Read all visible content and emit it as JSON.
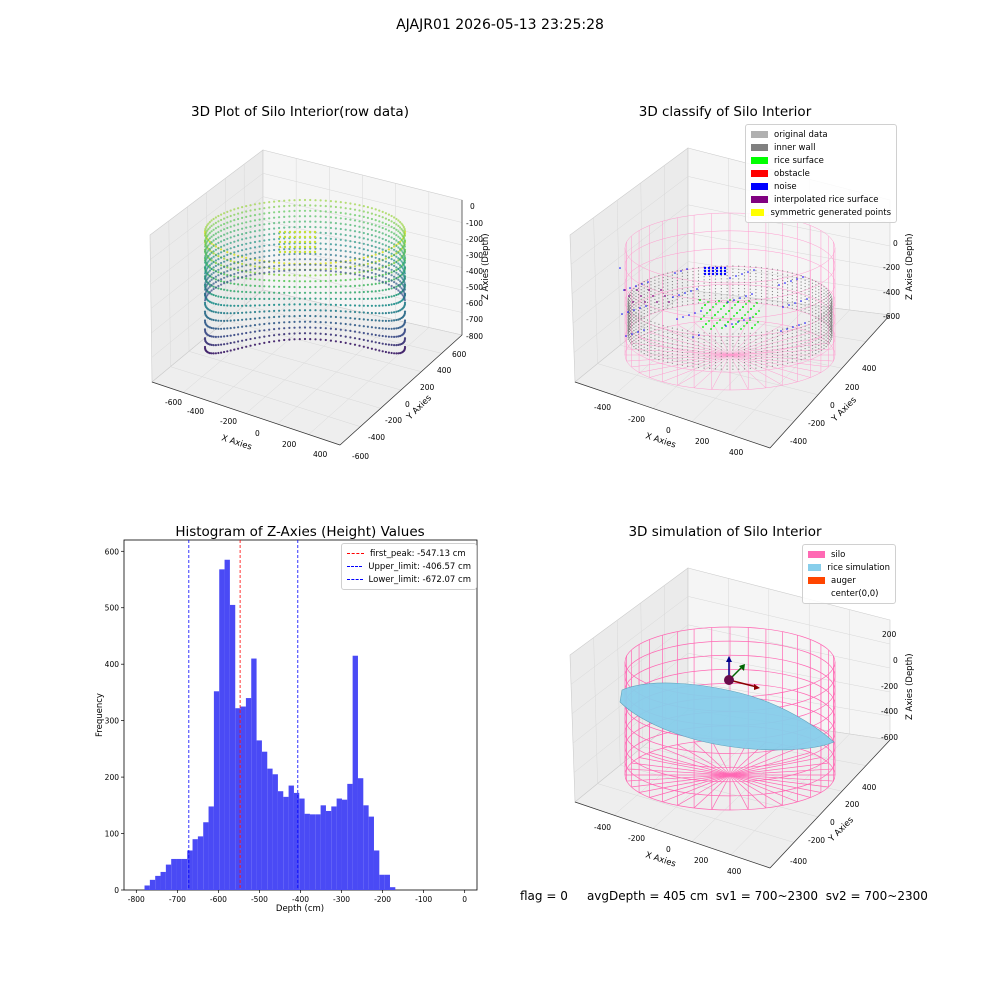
{
  "suptitle": "AJAJR01 2026-05-13 23:25:28",
  "status": {
    "flag": "flag = 0",
    "avg_depth": "avgDepth = 405 cm",
    "sv1": "sv1 = 700~2300",
    "sv2": "sv2 = 700~2300"
  },
  "colors": {
    "original": "#b0b0b0",
    "inner_wall": "#808080",
    "rice_surface": "#00ff00",
    "obstacle": "#ff0000",
    "noise": "#0000ff",
    "interp": "#800080",
    "symmetric": "#ffff00",
    "silo": "#ff69b4",
    "rice_sim": "#87ceeb",
    "auger": "#ff4500",
    "hist": "#4a4af5"
  },
  "panel1": {
    "title": "3D Plot of Silo Interior(row data)",
    "x_label": "X Axies",
    "y_label": "Y Axies",
    "z_label": "Z Axies (Depth)",
    "x_ticks": [
      "-600",
      "-400",
      "-200",
      "0",
      "200",
      "400"
    ],
    "y_ticks": [
      "600",
      "400",
      "200",
      "0",
      "-200",
      "-400",
      "-600"
    ],
    "z_ticks": [
      "0",
      "-100",
      "-200",
      "-300",
      "-400",
      "-500",
      "-600",
      "-700",
      "-800"
    ]
  },
  "panel2": {
    "title": "3D classify of Silo Interior",
    "x_label": "X Axies",
    "y_label": "Y Axies",
    "z_label": "Z Axies (Depth)",
    "x_ticks": [
      "-400",
      "-200",
      "0",
      "200",
      "400"
    ],
    "y_ticks": [
      "400",
      "200",
      "0",
      "-200",
      "-400"
    ],
    "z_ticks": [
      "0",
      "-200",
      "-400",
      "-600"
    ],
    "legend": [
      "original data",
      "inner wall",
      "rice surface",
      "obstacle",
      "noise",
      "interpolated rice surface",
      "symmetric generated points"
    ]
  },
  "panel4": {
    "title": "3D simulation of Silo Interior",
    "x_label": "X Axies",
    "y_label": "Y Axies",
    "z_label": "Z Axies (Depth)",
    "x_ticks": [
      "-400",
      "-200",
      "0",
      "200",
      "400"
    ],
    "y_ticks": [
      "400",
      "200",
      "0",
      "-200",
      "-400"
    ],
    "z_ticks": [
      "200",
      "0",
      "-200",
      "-400",
      "-600"
    ],
    "legend": [
      "silo",
      "rice simulation",
      "auger",
      "center(0,0)"
    ]
  },
  "chart_data": [
    {
      "type": "histogram",
      "title": "Histogram of Z-Axies (Height) Values",
      "xlabel": "Depth (cm)",
      "ylabel": "Frequency",
      "xlim": [
        -830,
        30
      ],
      "ylim": [
        0,
        620
      ],
      "x_ticks": [
        -800,
        -700,
        -600,
        -500,
        -400,
        -300,
        -200,
        -100,
        0
      ],
      "y_ticks": [
        0,
        100,
        200,
        300,
        400,
        500,
        600
      ],
      "bin_start": -780,
      "bin_width": 13,
      "values": [
        8,
        18,
        25,
        32,
        45,
        55,
        55,
        55,
        70,
        90,
        95,
        120,
        148,
        352,
        568,
        585,
        505,
        322,
        325,
        340,
        410,
        265,
        245,
        215,
        205,
        175,
        165,
        185,
        172,
        162,
        135,
        134,
        134,
        150,
        140,
        148,
        162,
        160,
        188,
        415,
        198,
        150,
        130,
        70,
        27,
        27,
        5
      ],
      "vlines": [
        {
          "label": "first_peak: -547.13 cm",
          "x": -547.13,
          "color": "#ff0000"
        },
        {
          "label": "Upper_limit: -406.57 cm",
          "x": -406.57,
          "color": "#0000ff"
        },
        {
          "label": "Lower_limit: -672.07 cm",
          "x": -672.07,
          "color": "#0000ff"
        }
      ],
      "legend_position": "upper right"
    }
  ]
}
